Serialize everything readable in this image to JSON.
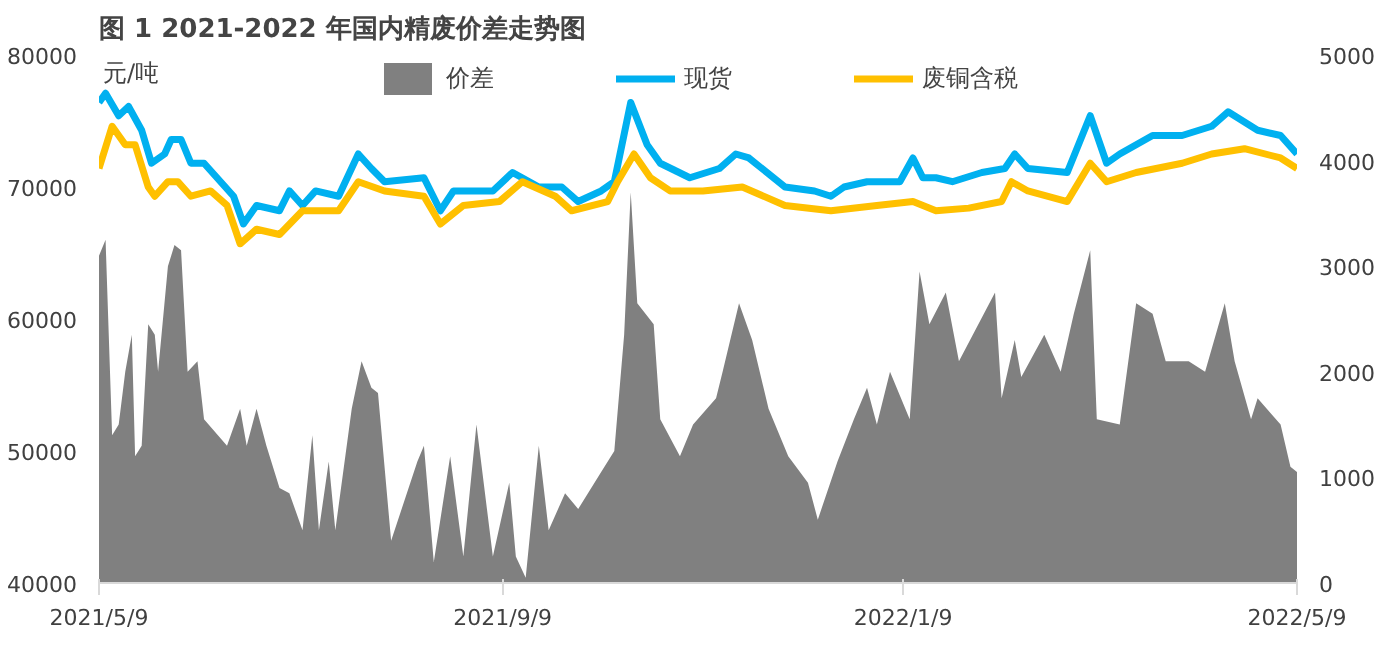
{
  "chart_data": {
    "type": "line",
    "title": "图 1 2021-2022 年国内精废价差走势图",
    "ylabel": "元/吨",
    "xlim": [
      "2021-05-09",
      "2022-05-09"
    ],
    "xticks": [
      {
        "value": "2021-05-09",
        "label": "2021/5/9"
      },
      {
        "value": "2021-09-09",
        "label": "2021/9/9"
      },
      {
        "value": "2022-01-09",
        "label": "2022/1/9"
      },
      {
        "value": "2022-05-09",
        "label": "2022/5/9"
      }
    ],
    "ylim": [
      40000,
      80000
    ],
    "yticks": [
      40000,
      50000,
      60000,
      70000,
      80000
    ],
    "y2lim": [
      0,
      5000
    ],
    "y2ticks": [
      0,
      1000,
      2000,
      3000,
      4000,
      5000
    ],
    "grid": false,
    "legend": "top",
    "series": [
      {
        "name": "价差",
        "type": "area",
        "axis": "y2",
        "color": "#808080",
        "x": [
          "2021-05-09",
          "2021-05-11",
          "2021-05-13",
          "2021-05-15",
          "2021-05-17",
          "2021-05-19",
          "2021-05-20",
          "2021-05-22",
          "2021-05-24",
          "2021-05-26",
          "2021-05-27",
          "2021-05-30",
          "2021-06-01",
          "2021-06-03",
          "2021-06-05",
          "2021-06-08",
          "2021-06-10",
          "2021-06-17",
          "2021-06-21",
          "2021-06-23",
          "2021-06-26",
          "2021-06-29",
          "2021-07-03",
          "2021-07-06",
          "2021-07-10",
          "2021-07-13",
          "2021-07-15",
          "2021-07-18",
          "2021-07-20",
          "2021-07-25",
          "2021-07-28",
          "2021-07-31",
          "2021-08-02",
          "2021-08-06",
          "2021-08-14",
          "2021-08-16",
          "2021-08-19",
          "2021-08-24",
          "2021-08-28",
          "2021-09-01",
          "2021-09-06",
          "2021-09-11",
          "2021-09-13",
          "2021-09-16",
          "2021-09-20",
          "2021-09-23",
          "2021-09-28",
          "2021-10-02",
          "2021-10-09",
          "2021-10-13",
          "2021-10-16",
          "2021-10-18",
          "2021-10-20",
          "2021-10-25",
          "2021-10-27",
          "2021-11-02",
          "2021-11-06",
          "2021-11-13",
          "2021-11-15",
          "2021-11-20",
          "2021-11-24",
          "2021-11-29",
          "2021-12-05",
          "2021-12-11",
          "2021-12-14",
          "2021-12-20",
          "2021-12-25",
          "2021-12-29",
          "2022-01-01",
          "2022-01-05",
          "2022-01-11",
          "2022-01-14",
          "2022-01-17",
          "2022-01-22",
          "2022-01-26",
          "2022-02-06",
          "2022-02-08",
          "2022-02-12",
          "2022-02-14",
          "2022-02-21",
          "2022-02-26",
          "2022-03-02",
          "2022-03-07",
          "2022-03-09",
          "2022-03-16",
          "2022-03-21",
          "2022-03-26",
          "2022-03-30",
          "2022-04-06",
          "2022-04-11",
          "2022-04-17",
          "2022-04-20",
          "2022-04-25",
          "2022-04-27",
          "2022-05-04",
          "2022-05-07",
          "2022-05-09"
        ],
        "values": [
          3100,
          3250,
          1400,
          1500,
          2000,
          2350,
          1200,
          1300,
          2450,
          2350,
          2000,
          3000,
          3200,
          3150,
          2000,
          2100,
          1550,
          1300,
          1650,
          1300,
          1650,
          1300,
          900,
          850,
          500,
          1400,
          500,
          1150,
          500,
          1650,
          2100,
          1850,
          1800,
          400,
          1150,
          1300,
          200,
          1200,
          250,
          1500,
          250,
          950,
          250,
          50,
          1300,
          500,
          850,
          700,
          1050,
          1250,
          2350,
          3700,
          2650,
          2450,
          1550,
          1200,
          1500,
          1750,
          2000,
          2650,
          2300,
          1650,
          1200,
          950,
          600,
          1150,
          1550,
          1850,
          1500,
          2000,
          1550,
          2950,
          2450,
          2750,
          2100,
          2750,
          1750,
          2300,
          1950,
          2350,
          2000,
          2550,
          3150,
          1550,
          1500,
          2650,
          2550,
          2100,
          2100,
          2000,
          2650,
          2100,
          1550,
          1750,
          1500,
          1100,
          1050
        ]
      },
      {
        "name": "现货",
        "color": "#00b0f0",
        "x": [
          "2021-05-09",
          "2021-05-11",
          "2021-05-15",
          "2021-05-18",
          "2021-05-22",
          "2021-05-25",
          "2021-05-29",
          "2021-05-31",
          "2021-06-03",
          "2021-06-06",
          "2021-06-10",
          "2021-06-19",
          "2021-06-22",
          "2021-06-26",
          "2021-07-03",
          "2021-07-06",
          "2021-07-10",
          "2021-07-14",
          "2021-07-21",
          "2021-07-27",
          "2021-07-31",
          "2021-08-04",
          "2021-08-16",
          "2021-08-21",
          "2021-08-25",
          "2021-09-06",
          "2021-09-12",
          "2021-09-20",
          "2021-09-27",
          "2021-10-02",
          "2021-10-09",
          "2021-10-13",
          "2021-10-18",
          "2021-10-23",
          "2021-10-27",
          "2021-11-05",
          "2021-11-14",
          "2021-11-19",
          "2021-11-23",
          "2021-12-04",
          "2021-12-13",
          "2021-12-18",
          "2021-12-22",
          "2021-12-29",
          "2022-01-08",
          "2022-01-12",
          "2022-01-15",
          "2022-01-19",
          "2022-01-24",
          "2022-02-02",
          "2022-02-09",
          "2022-02-12",
          "2022-02-16",
          "2022-02-28",
          "2022-03-07",
          "2022-03-12",
          "2022-03-16",
          "2022-03-26",
          "2022-04-04",
          "2022-04-13",
          "2022-04-18",
          "2022-04-27",
          "2022-05-04",
          "2022-05-09"
        ],
        "values": [
          76400,
          77100,
          75400,
          76100,
          74300,
          71800,
          72500,
          73600,
          73600,
          71800,
          71800,
          69300,
          67200,
          68600,
          68200,
          69700,
          68600,
          69700,
          69300,
          72500,
          71400,
          70400,
          70700,
          68200,
          69700,
          69700,
          71100,
          70000,
          70000,
          68900,
          69700,
          70400,
          76400,
          73200,
          71800,
          70700,
          71400,
          72500,
          72200,
          70000,
          69700,
          69300,
          70000,
          70400,
          70400,
          72200,
          70700,
          70700,
          70400,
          71100,
          71400,
          72500,
          71400,
          71100,
          75400,
          71800,
          72500,
          73900,
          73900,
          74600,
          75700,
          74300,
          73900,
          72500
        ]
      },
      {
        "name": "废铜含税",
        "color": "#ffc000",
        "x": [
          "2021-05-09",
          "2021-05-13",
          "2021-05-17",
          "2021-05-20",
          "2021-05-24",
          "2021-05-26",
          "2021-05-30",
          "2021-06-02",
          "2021-06-06",
          "2021-06-12",
          "2021-06-17",
          "2021-06-21",
          "2021-06-26",
          "2021-07-03",
          "2021-07-10",
          "2021-07-17",
          "2021-07-21",
          "2021-07-27",
          "2021-08-04",
          "2021-08-16",
          "2021-08-21",
          "2021-08-28",
          "2021-09-08",
          "2021-09-15",
          "2021-09-25",
          "2021-09-30",
          "2021-10-11",
          "2021-10-14",
          "2021-10-19",
          "2021-10-24",
          "2021-10-30",
          "2021-11-09",
          "2021-11-21",
          "2021-12-04",
          "2021-12-18",
          "2022-01-01",
          "2022-01-12",
          "2022-01-19",
          "2022-01-29",
          "2022-02-08",
          "2022-02-11",
          "2022-02-16",
          "2022-02-28",
          "2022-03-07",
          "2022-03-12",
          "2022-03-21",
          "2022-04-04",
          "2022-04-13",
          "2022-04-23",
          "2022-05-04",
          "2022-05-09"
        ],
        "values": [
          71400,
          74600,
          73200,
          73200,
          70000,
          69300,
          70400,
          70400,
          69300,
          69700,
          68600,
          65700,
          66800,
          66400,
          68200,
          68200,
          68200,
          70400,
          69700,
          69300,
          67200,
          68600,
          68900,
          70400,
          69300,
          68200,
          68900,
          70400,
          72500,
          70700,
          69700,
          69700,
          70000,
          68600,
          68200,
          68600,
          68900,
          68200,
          68400,
          68900,
          70400,
          69700,
          68900,
          71800,
          70400,
          71100,
          71800,
          72500,
          72900,
          72200,
          71400
        ]
      }
    ]
  }
}
